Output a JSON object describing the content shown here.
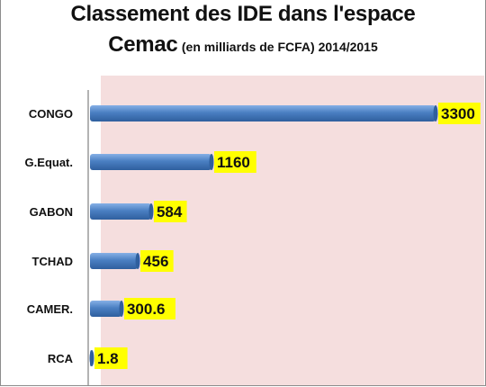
{
  "title_line1": "Classement des IDE dans l'espace",
  "title_line2_main": "Cemac",
  "title_line2_sub": "(en milliards de FCFA) 2014/2015",
  "colors": {
    "plot_background": "#f5dede",
    "bar": "#4a7fc2",
    "bar_dark": "#2f5f9e",
    "label_background": "#ffff00"
  },
  "chart_data": {
    "type": "bar",
    "orientation": "horizontal",
    "categories": [
      "CONGO",
      "G.Equat.",
      "GABON",
      "TCHAD",
      "CAMER.",
      "RCA"
    ],
    "values": [
      3300,
      1160,
      584,
      456,
      300.6,
      1.8
    ],
    "value_labels": [
      "3300",
      "1160",
      "584",
      "456",
      "300.6",
      "1.8"
    ],
    "xlim": [
      0,
      3400
    ],
    "grid": false,
    "legend": "none"
  }
}
